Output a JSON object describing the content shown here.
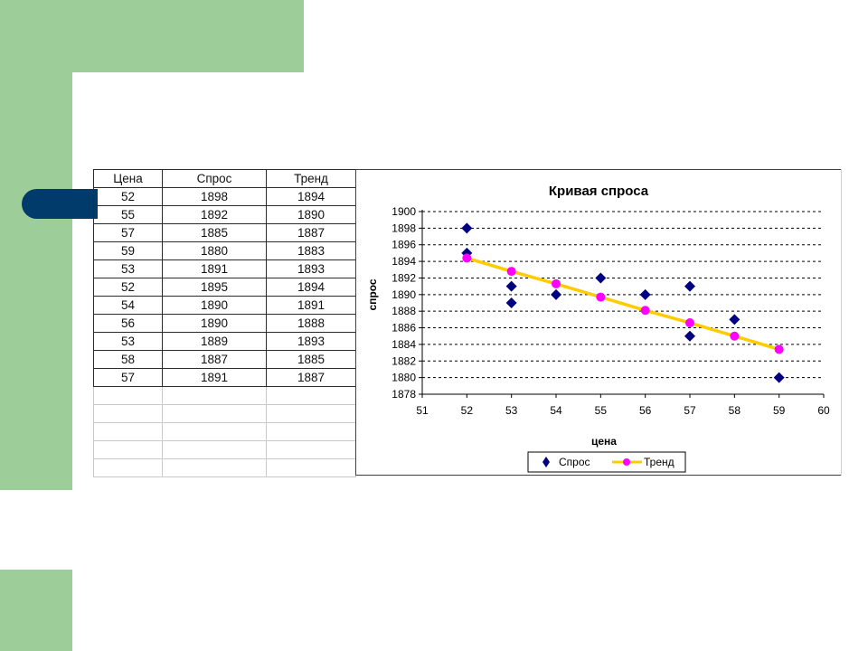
{
  "colors": {
    "green": "#9dcd98",
    "navy": "#003b6b",
    "series_demand": "#000080",
    "series_trend_line": "#ffcc00",
    "series_trend_marker": "#ff00ff"
  },
  "table": {
    "headers": [
      "Цена",
      "Спрос",
      "Тренд"
    ],
    "rows": [
      [
        "52",
        "1898",
        "1894"
      ],
      [
        "55",
        "1892",
        "1890"
      ],
      [
        "57",
        "1885",
        "1887"
      ],
      [
        "59",
        "1880",
        "1883"
      ],
      [
        "53",
        "1891",
        "1893"
      ],
      [
        "52",
        "1895",
        "1894"
      ],
      [
        "54",
        "1890",
        "1891"
      ],
      [
        "56",
        "1890",
        "1888"
      ],
      [
        "53",
        "1889",
        "1893"
      ],
      [
        "58",
        "1887",
        "1885"
      ],
      [
        "57",
        "1891",
        "1887"
      ]
    ],
    "empty_rows": 5
  },
  "chart_data": {
    "type": "scatter",
    "title": "Кривая спроса",
    "xlabel": "цена",
    "ylabel": "спрос",
    "xlim": [
      51,
      60
    ],
    "ylim": [
      1878,
      1900
    ],
    "x_ticks": [
      51,
      52,
      53,
      54,
      55,
      56,
      57,
      58,
      59,
      60
    ],
    "y_ticks": [
      1878,
      1880,
      1882,
      1884,
      1886,
      1888,
      1890,
      1892,
      1894,
      1896,
      1898,
      1900
    ],
    "grid": "horizontal-dashed",
    "legend_position": "bottom",
    "series": [
      {
        "name": "Спрос",
        "marker": "diamond",
        "points": [
          [
            52,
            1898
          ],
          [
            55,
            1892
          ],
          [
            57,
            1885
          ],
          [
            59,
            1880
          ],
          [
            53,
            1891
          ],
          [
            52,
            1895
          ],
          [
            54,
            1890
          ],
          [
            56,
            1890
          ],
          [
            53,
            1889
          ],
          [
            58,
            1887
          ],
          [
            57,
            1891
          ]
        ]
      },
      {
        "name": "Тренд",
        "marker": "circle",
        "line": true,
        "points": [
          [
            52,
            1894.4
          ],
          [
            53,
            1892.8
          ],
          [
            54,
            1891.3
          ],
          [
            55,
            1889.7
          ],
          [
            56,
            1888.1
          ],
          [
            57,
            1886.6
          ],
          [
            58,
            1885.0
          ],
          [
            59,
            1883.4
          ]
        ]
      }
    ]
  }
}
